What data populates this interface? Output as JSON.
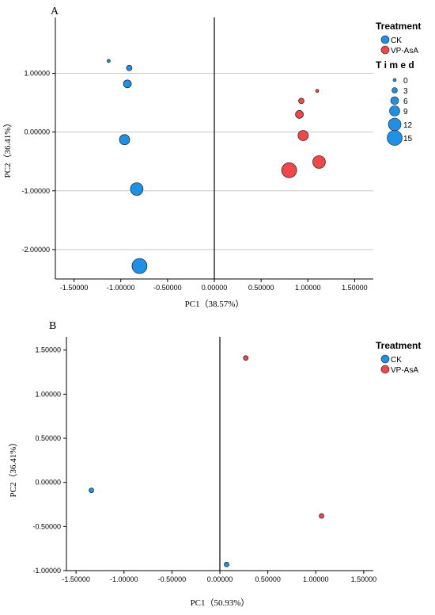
{
  "colors": {
    "CK": "#1e90e6",
    "VP-AsA": "#f04848",
    "grid": "#c8c8c8"
  },
  "chart_data": [
    {
      "type": "scatter",
      "panel_label": "A",
      "xlabel": "PC1（38.57%）",
      "ylabel": "PC2（36.41%）",
      "xlim": [
        -1.7,
        1.7
      ],
      "ylim": [
        -2.5,
        1.95
      ],
      "xticks": [
        -1.5,
        -1.0,
        -0.5,
        0.0,
        0.5,
        1.0,
        1.5
      ],
      "xtick_labels": [
        "-1.50000",
        "-1.00000",
        "-0.50000",
        "0.00000",
        "0.50000",
        "1.00000",
        "1.50000"
      ],
      "yticks": [
        1.0,
        0.0,
        -1.0,
        -2.0
      ],
      "ytick_labels": [
        "1.00000",
        "0.00000",
        "-1.00000",
        "-2.00000"
      ],
      "grid": "horizontal",
      "vline_x": 0,
      "legend": {
        "placement": "right",
        "title": "Treatment",
        "items": [
          "CK",
          "VP-AsA"
        ],
        "size_title": "T i m e d",
        "size_items": [
          "0",
          "3",
          "6",
          "9",
          "12",
          "15"
        ],
        "size_values": [
          0,
          3,
          6,
          9,
          12,
          15
        ]
      },
      "series": [
        {
          "name": "CK",
          "points": [
            {
              "x": -1.13,
              "y": 1.21,
              "t": 0
            },
            {
              "x": -0.91,
              "y": 1.09,
              "t": 3
            },
            {
              "x": -0.93,
              "y": 0.82,
              "t": 6
            },
            {
              "x": -0.96,
              "y": -0.13,
              "t": 9
            },
            {
              "x": -0.83,
              "y": -0.97,
              "t": 12
            },
            {
              "x": -0.8,
              "y": -2.28,
              "t": 15
            }
          ]
        },
        {
          "name": "VP-AsA",
          "points": [
            {
              "x": 1.1,
              "y": 0.7,
              "t": 0
            },
            {
              "x": 0.93,
              "y": 0.53,
              "t": 3
            },
            {
              "x": 0.91,
              "y": 0.3,
              "t": 6
            },
            {
              "x": 0.95,
              "y": -0.06,
              "t": 9
            },
            {
              "x": 1.12,
              "y": -0.51,
              "t": 12
            },
            {
              "x": 0.8,
              "y": -0.65,
              "t": 15
            }
          ]
        }
      ]
    },
    {
      "type": "scatter",
      "panel_label": "B",
      "xlabel": "PC1（50.93%）",
      "ylabel": "PC2（36.41%）",
      "xlim": [
        -1.6,
        1.6
      ],
      "ylim": [
        -1.0,
        1.65
      ],
      "xticks": [
        -1.5,
        -1.0,
        -0.5,
        0.0,
        0.5,
        1.0,
        1.5
      ],
      "xtick_labels": [
        "-1.50000",
        "-1.00000",
        "-0.50000",
        "0.00000",
        "0.50000",
        "1.00000",
        "1.50000"
      ],
      "yticks": [
        1.5,
        1.0,
        0.5,
        0.0,
        -0.5,
        -1.0
      ],
      "ytick_labels": [
        "1.50000",
        "1.00000",
        "0.50000",
        "0.00000",
        "-0.50000",
        "-1.00000"
      ],
      "grid": "none",
      "vline_x": 0,
      "legend": {
        "placement": "right",
        "title": "Treatment",
        "items": [
          "CK",
          "VP-AsA"
        ]
      },
      "series": [
        {
          "name": "CK",
          "points": [
            {
              "x": -1.34,
              "y": -0.09
            },
            {
              "x": 0.07,
              "y": -0.93
            }
          ]
        },
        {
          "name": "VP-AsA",
          "points": [
            {
              "x": 0.27,
              "y": 1.41
            },
            {
              "x": 1.06,
              "y": -0.38
            }
          ]
        }
      ]
    }
  ]
}
